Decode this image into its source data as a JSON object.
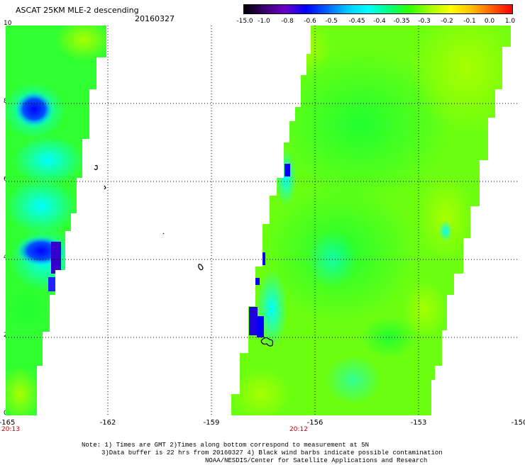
{
  "header": {
    "title": "ASCAT 25KM MLE-2 descending",
    "date": "20160327"
  },
  "colorbar": {
    "labels": [
      "-15.0",
      "-1.0",
      "-0.8",
      "-0.6",
      "-0.5",
      "-0.45",
      "-0.4",
      "-0.35",
      "-0.3",
      "-0.2",
      "-0.1",
      "0.0",
      "1.0"
    ],
    "colors": [
      "#000000",
      "#3a0070",
      "#6a00c8",
      "#0000ff",
      "#0060ff",
      "#00c8ff",
      "#00ffff",
      "#00ff80",
      "#30ff00",
      "#a0ff00",
      "#ffff00",
      "#ffc000",
      "#ff6000",
      "#ff0000"
    ]
  },
  "axes": {
    "y_ticks": [
      "10",
      "8",
      "6",
      "4",
      "2",
      "0"
    ],
    "x_ticks": [
      "-165",
      "-162",
      "-159",
      "-156",
      "-153",
      "-150"
    ]
  },
  "times": {
    "left": "20:13",
    "right": "20:12"
  },
  "notes": {
    "line1": "Note: 1) Times are GMT 2)Times along bottom correspond to measurement at 5N",
    "line2": "3)Data buffer is 22 hrs from 20160327 4) Black wind barbs indicate possible contamination",
    "line3": "NOAA/NESDIS/Center for Satellite Applications and Research"
  }
}
